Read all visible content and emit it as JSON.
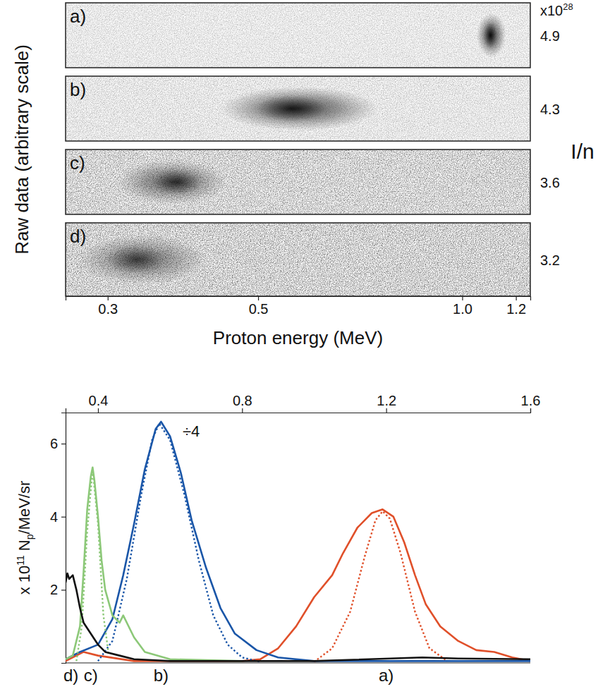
{
  "chart_data": [
    {
      "type": "image",
      "ylabel": "Raw data (arbitrary scale)",
      "xlabel": "Proton energy (MeV)",
      "log": "x",
      "xlim": [
        0.26,
        1.26
      ],
      "xticks": [
        0.3,
        0.5,
        {
          "value": 1,
          "label": "1.0"
        },
        1.2
      ],
      "right_label": "I/n",
      "right_multiplier": {
        "base": "x10",
        "exponent": 28
      },
      "panels": [
        {
          "label": "a)",
          "intensity": 4.9,
          "peak_energy": 1.1,
          "energy_low": 1.05,
          "energy_high": 1.16
        },
        {
          "label": "b)",
          "intensity": 4.3,
          "peak_energy": 0.56,
          "energy_low": 0.44,
          "energy_high": 0.75
        },
        {
          "label": "c)",
          "intensity": 3.6,
          "peak_energy": 0.38,
          "energy_low": 0.31,
          "energy_high": 0.45
        },
        {
          "label": "d)",
          "intensity": 3.2,
          "peak_energy": 0.33,
          "energy_low": 0.27,
          "energy_high": 0.42
        }
      ]
    },
    {
      "type": "line",
      "ylabel": {
        "prefix": "x 10",
        "exponent": 11,
        "main": "N",
        "subscript": "p",
        "suffix": "/MeV/sr"
      },
      "xlim": [
        0.31,
        1.6
      ],
      "xticks": [
        0.4,
        0.8,
        1.2,
        1.6
      ],
      "ylim": [
        0,
        6.85
      ],
      "yticks": [
        2,
        4,
        6
      ],
      "series": [
        {
          "color": "#e0502a",
          "line_style": "solid",
          "x": [
            0.31,
            0.36,
            0.4,
            0.5,
            0.8,
            0.85,
            0.9,
            0.95,
            1.0,
            1.05,
            1.08,
            1.12,
            1.16,
            1.19,
            1.22,
            1.25,
            1.28,
            1.31,
            1.35,
            1.4,
            1.45,
            1.5,
            1.55,
            1.6
          ],
          "values": [
            0.05,
            0.3,
            0.2,
            0.05,
            0.05,
            0.1,
            0.4,
            1.0,
            1.8,
            2.4,
            3.0,
            3.7,
            4.1,
            4.2,
            4.0,
            3.3,
            2.4,
            1.6,
            1.0,
            0.6,
            0.35,
            0.3,
            0.15,
            0.05
          ]
        },
        {
          "color": "#e0502a",
          "line_style": "dotted",
          "x": [
            1.0,
            1.05,
            1.1,
            1.14,
            1.17,
            1.19,
            1.21,
            1.24,
            1.28,
            1.32,
            1.37
          ],
          "values": [
            0.03,
            0.4,
            1.4,
            2.9,
            3.9,
            4.15,
            3.95,
            3.0,
            1.4,
            0.4,
            0.05
          ]
        },
        {
          "color": "#1a56a8",
          "line_style": "solid",
          "x": [
            0.31,
            0.35,
            0.4,
            0.44,
            0.47,
            0.5,
            0.53,
            0.56,
            0.575,
            0.6,
            0.63,
            0.66,
            0.7,
            0.74,
            0.78,
            0.84,
            0.9,
            1.0,
            1.6
          ],
          "values": [
            0.1,
            0.3,
            0.5,
            1.2,
            2.4,
            3.8,
            5.3,
            6.4,
            6.6,
            6.2,
            5.2,
            3.9,
            2.6,
            1.5,
            0.8,
            0.35,
            0.15,
            0.05,
            0.05
          ]
        },
        {
          "color": "#1a56a8",
          "line_style": "dotted",
          "x": [
            0.4,
            0.44,
            0.48,
            0.52,
            0.55,
            0.57,
            0.6,
            0.64,
            0.68,
            0.72,
            0.76,
            0.8,
            0.85
          ],
          "values": [
            0.05,
            0.6,
            2.3,
            4.6,
            6.1,
            6.55,
            6.1,
            4.6,
            2.8,
            1.3,
            0.5,
            0.15,
            0.03
          ]
        },
        {
          "color": "#8cc878",
          "line_style": "solid",
          "x": [
            0.31,
            0.33,
            0.35,
            0.36,
            0.37,
            0.38,
            0.385,
            0.39,
            0.4,
            0.41,
            0.42,
            0.44,
            0.46,
            0.47,
            0.48,
            0.5,
            0.53,
            0.6,
            0.8
          ],
          "values": [
            0.1,
            0.2,
            1.0,
            2.5,
            4.2,
            5.1,
            5.35,
            5.0,
            4.0,
            2.8,
            2.0,
            1.3,
            1.1,
            1.3,
            1.1,
            0.7,
            0.3,
            0.1,
            0.05
          ]
        },
        {
          "color": "#8cc878",
          "line_style": "dotted",
          "x": [
            0.34,
            0.355,
            0.37,
            0.385,
            0.4,
            0.415,
            0.43
          ],
          "values": [
            0.05,
            1.0,
            3.6,
            5.3,
            3.8,
            1.3,
            0.2
          ]
        },
        {
          "color": "#111111",
          "line_style": "solid",
          "x": [
            0.31,
            0.315,
            0.32,
            0.33,
            0.34,
            0.35,
            0.36,
            0.38,
            0.4,
            0.42,
            0.46,
            0.5,
            0.6,
            1.0,
            1.3,
            1.4,
            1.6
          ],
          "values": [
            2.2,
            2.45,
            2.3,
            2.4,
            2.0,
            1.5,
            1.1,
            0.8,
            0.5,
            0.3,
            0.2,
            0.1,
            0.05,
            0.05,
            0.15,
            0.12,
            0.1
          ]
        }
      ],
      "annotations": [
        {
          "text": "÷4",
          "x": 0.635,
          "y": 6.2
        }
      ],
      "curve_labels": [
        {
          "text": "d)",
          "x": 0.325
        },
        {
          "text": "c)",
          "x": 0.38
        },
        {
          "text": "b)",
          "x": 0.575
        },
        {
          "text": "a)",
          "x": 1.2
        }
      ]
    }
  ]
}
